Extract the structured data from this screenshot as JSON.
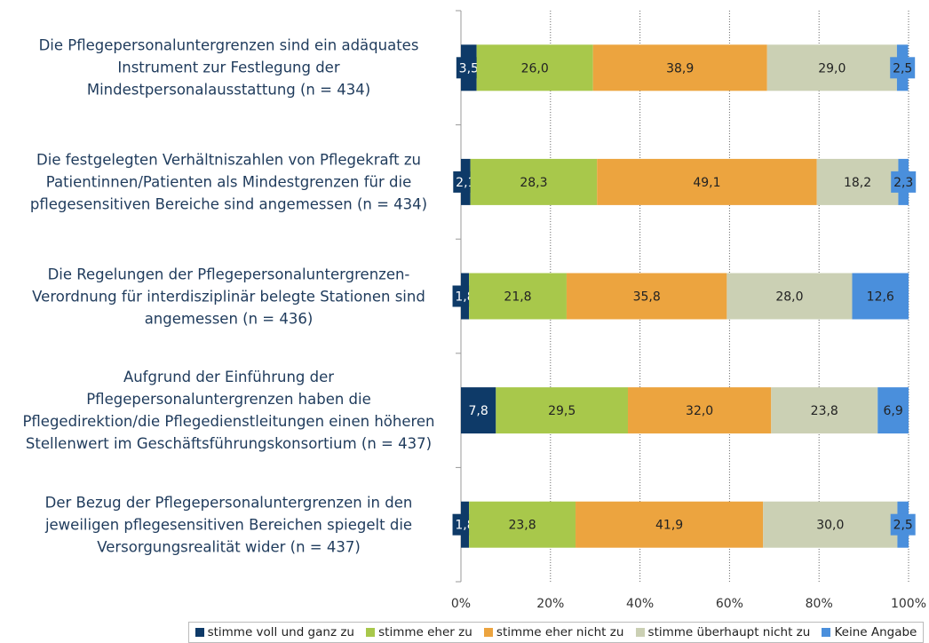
{
  "chart_data": {
    "type": "stacked-barh",
    "categories": [
      "Die Pflegepersonaluntergrenzen sind ein adäquates\nInstrument zur Festlegung der\nMindestpersonalausstattung (n = 434)",
      "Die festgelegten Verhältniszahlen von Pflegekraft zu\nPatientinnen/Patienten als Mindestgrenzen für die\npflegesensitiven Bereiche sind angemessen (n = 434)",
      "Die Regelungen der Pflegepersonaluntergrenzen-\nVerordnung für interdisziplinär belegte Stationen sind\nangemessen (n = 436)",
      "Aufgrund der Einführung der\nPflegepersonaluntergrenzen haben die\nPflegedirektion/die Pflegedienstleitungen einen höheren\nStellenwert im Geschäftsführungskonsortium (n = 437)",
      "Der Bezug der Pflegepersonaluntergrenzen in den\njeweiligen pflegesensitiven Bereichen spiegelt die\nVersorgungsrealität wider (n = 437)"
    ],
    "series": [
      {
        "name": "stimme voll und ganz zu",
        "color": "#0e3a68",
        "values": [
          3.5,
          2.1,
          1.8,
          7.8,
          1.8
        ],
        "value_labels": [
          "3,5",
          "2,1",
          "1,8",
          "7,8",
          "1,8"
        ]
      },
      {
        "name": "stimme eher zu",
        "color": "#a8c84b",
        "values": [
          26.0,
          28.3,
          21.8,
          29.5,
          23.8
        ],
        "value_labels": [
          "26,0",
          "28,3",
          "21,8",
          "29,5",
          "23,8"
        ]
      },
      {
        "name": "stimme eher nicht zu",
        "color": "#eca43f",
        "values": [
          38.9,
          49.1,
          35.8,
          32.0,
          41.9
        ],
        "value_labels": [
          "38,9",
          "49,1",
          "35,8",
          "32,0",
          "41,9"
        ]
      },
      {
        "name": "stimme überhaupt nicht zu",
        "color": "#cbd0b4",
        "values": [
          29.0,
          18.2,
          28.0,
          23.8,
          30.0
        ],
        "value_labels": [
          "29,0",
          "18,2",
          "28,0",
          "23,8",
          "30,0"
        ]
      },
      {
        "name": "Keine Angabe",
        "color": "#4a8fdc",
        "values": [
          2.5,
          2.3,
          12.6,
          6.9,
          2.5
        ],
        "value_labels": [
          "2,5",
          "2,3",
          "12,6",
          "6,9",
          "2,5"
        ]
      }
    ],
    "xlim": [
      0,
      100
    ],
    "xticks": [
      {
        "value": 0,
        "label": "0%"
      },
      {
        "value": 20,
        "label": "20%"
      },
      {
        "value": 40,
        "label": "40%"
      },
      {
        "value": 60,
        "label": "60%"
      },
      {
        "value": 80,
        "label": "80%"
      },
      {
        "value": 100,
        "label": "100%"
      }
    ],
    "grid": true,
    "legend": "bottom"
  }
}
